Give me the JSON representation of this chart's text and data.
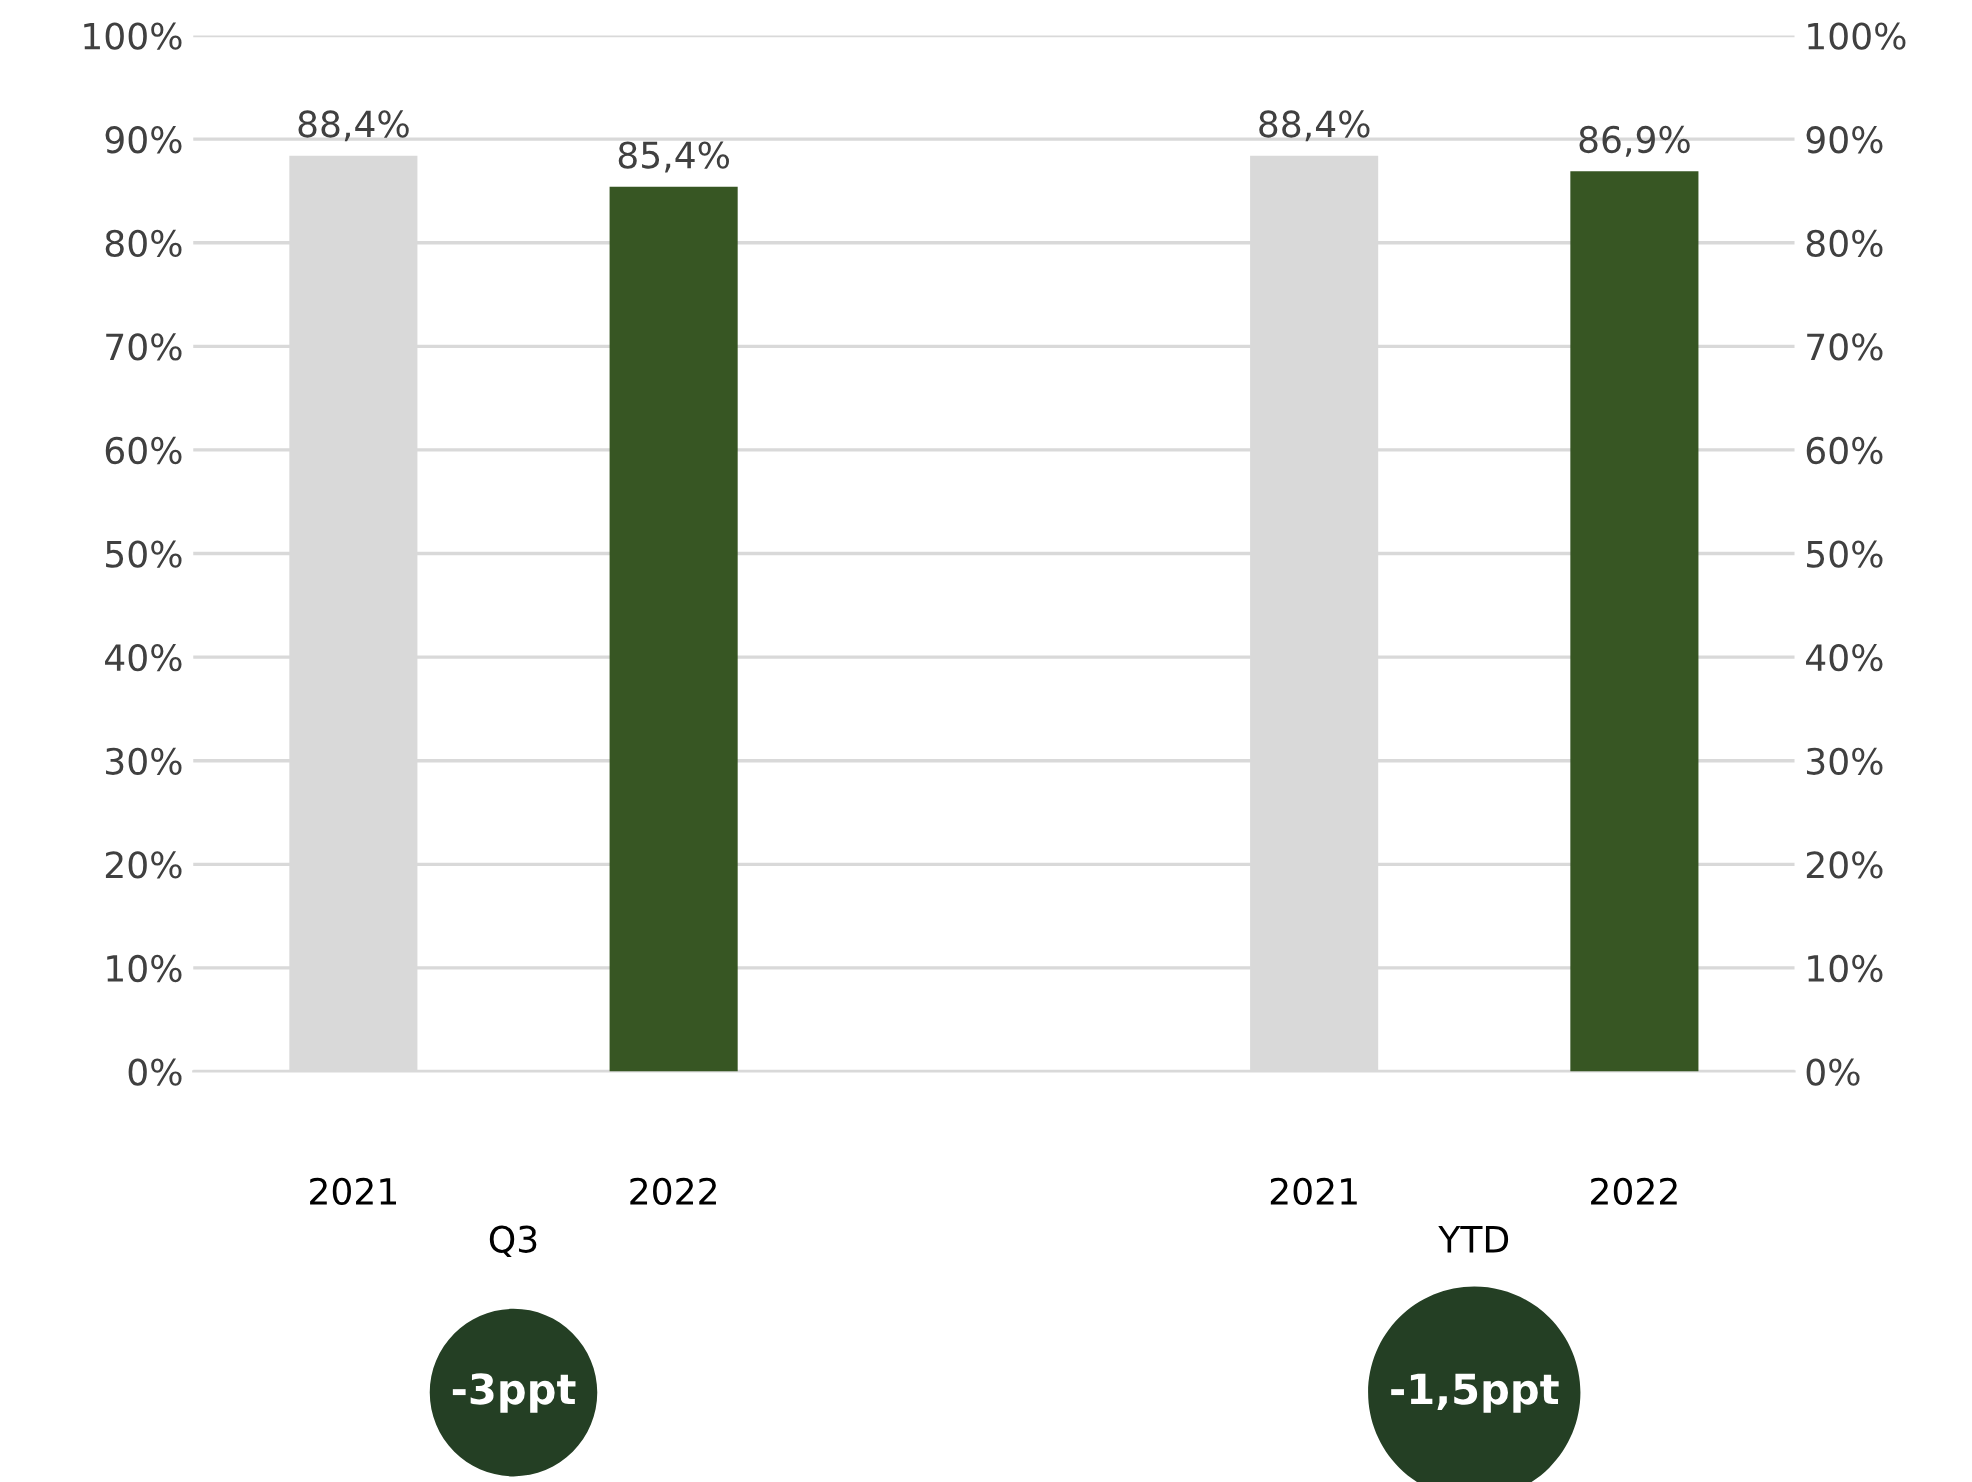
{
  "chart_data": {
    "type": "bar",
    "categories": [
      "2021",
      "2022",
      null,
      "2021",
      "2022"
    ],
    "values": [
      88.4,
      85.4,
      null,
      88.4,
      86.9
    ],
    "colors": [
      "#d9d9d9",
      "#375623",
      null,
      "#d9d9d9",
      "#375623"
    ],
    "value_labels": [
      "88,4%",
      "85,4%",
      null,
      "88,4%",
      "86,9%"
    ],
    "ylim": [
      0,
      100
    ],
    "yticks": [
      {
        "value": 0,
        "label": "0%"
      },
      {
        "value": 10,
        "label": "10%"
      },
      {
        "value": 20,
        "label": "20%"
      },
      {
        "value": 30,
        "label": "30%"
      },
      {
        "value": 40,
        "label": "40%"
      },
      {
        "value": 50,
        "label": "50%"
      },
      {
        "value": 60,
        "label": "60%"
      },
      {
        "value": 70,
        "label": "70%"
      },
      {
        "value": 80,
        "label": "80%"
      },
      {
        "value": 90,
        "label": "90%"
      },
      {
        "value": 100,
        "label": "100%"
      }
    ],
    "y2lim": [
      0,
      100
    ],
    "y2ticks": [
      {
        "value": 0,
        "label": "0%"
      },
      {
        "value": 10,
        "label": "10%"
      },
      {
        "value": 20,
        "label": "20%"
      },
      {
        "value": 30,
        "label": "30%"
      },
      {
        "value": 40,
        "label": "40%"
      },
      {
        "value": 50,
        "label": "50%"
      },
      {
        "value": 60,
        "label": "60%"
      },
      {
        "value": 70,
        "label": "70%"
      },
      {
        "value": 80,
        "label": "80%"
      },
      {
        "value": 90,
        "label": "90%"
      },
      {
        "value": 100,
        "label": "100%"
      }
    ],
    "grid": "y",
    "annotations": [
      "Q3",
      "YTD",
      "-3ppt",
      "-1,5ppt"
    ]
  }
}
